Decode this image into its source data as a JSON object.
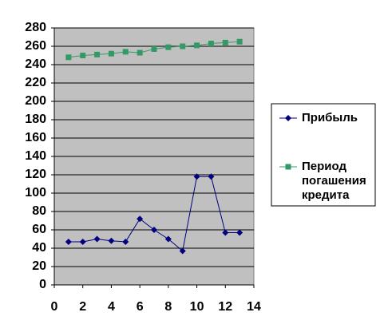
{
  "chart_data": {
    "type": "line",
    "x": [
      1,
      2,
      3,
      4,
      5,
      6,
      7,
      8,
      9,
      10,
      11,
      12,
      13
    ],
    "series": [
      {
        "name": "Прибыль",
        "color": "#000080",
        "marker": "diamond",
        "values": [
          47,
          47,
          50,
          48,
          47,
          72,
          60,
          50,
          37,
          118,
          118,
          57,
          57
        ]
      },
      {
        "name": "Период погашения кредита",
        "color": "#339966",
        "marker": "square",
        "values": [
          248,
          250,
          251,
          252,
          254,
          253,
          257,
          259,
          260,
          261,
          263,
          264,
          265
        ]
      }
    ],
    "xlim": [
      0,
      14
    ],
    "xticks": [
      0,
      2,
      4,
      6,
      8,
      10,
      12,
      14
    ],
    "ylim": [
      0,
      280
    ],
    "yticks": [
      0,
      20,
      40,
      60,
      80,
      100,
      120,
      140,
      160,
      180,
      200,
      220,
      240,
      260,
      280
    ],
    "grid": true,
    "legend": "right"
  }
}
